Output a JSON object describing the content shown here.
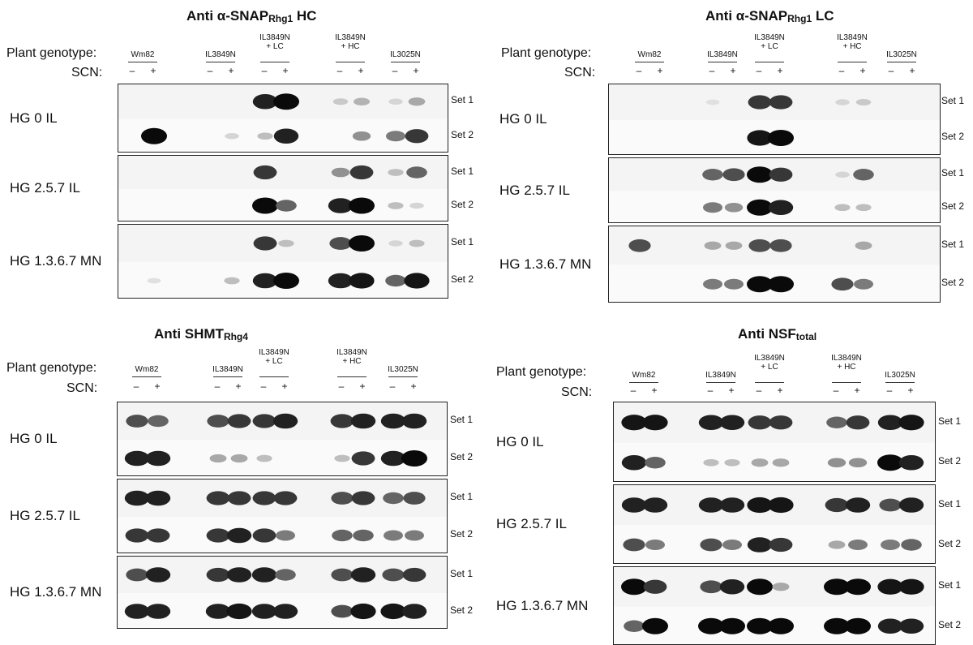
{
  "row_labels": {
    "genotype": "Plant genotype:",
    "scn": "SCN:"
  },
  "scn_signs": {
    "minus": "–",
    "plus": "+"
  },
  "set_labels": [
    "Set 1",
    "Set 2"
  ],
  "hg_labels": [
    "HG 0 IL",
    "HG 2.5.7 IL",
    "HG 1.3.6.7 MN"
  ],
  "panels": [
    {
      "title_main": "Anti α-SNAP",
      "title_sub": "Rhg1",
      "title_end": " HC",
      "genotypes": [
        "Wm82",
        "IL3849N",
        "IL3849N\n+ LC",
        "IL3849N\n+ HC",
        "IL3025N"
      ]
    },
    {
      "title_main": "Anti α-SNAP",
      "title_sub": "Rhg1",
      "title_end": " LC",
      "genotypes": [
        "Wm82",
        "IL3849N",
        "IL3849N\n+ LC",
        "IL3849N\n+ HC",
        "IL3025N"
      ]
    },
    {
      "title_main": "Anti SHMT",
      "title_sub": "Rhg4",
      "title_end": "",
      "genotypes": [
        "Wm82",
        "IL3849N",
        "IL3849N\n+ LC",
        "IL3849N\n+ HC",
        "IL3025N"
      ]
    },
    {
      "title_main": "Anti NSF",
      "title_sub": "total",
      "title_end": "",
      "genotypes": [
        "Wm82",
        "IL3849N",
        "IL3849N\n+ LC",
        "IL3849N\n+ HC",
        "IL3025N"
      ]
    }
  ]
}
